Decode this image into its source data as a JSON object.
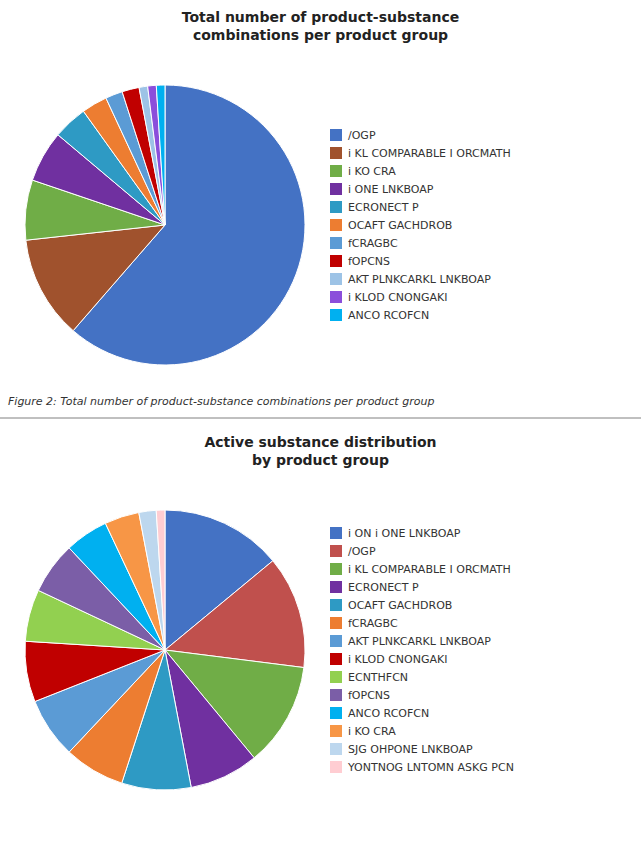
{
  "chart_data": [
    {
      "type": "pie",
      "title": "Total number of product-substance\ncombinations per product group",
      "categories": [
        "/OGP",
        "i KL COMPARABLE I ORCMATH",
        "i KO CRA",
        "i ONE LNKBOAP",
        "ECRONECT P",
        "OCAFT GACHDROB",
        "fCRAGBC",
        "fOPCNS",
        "AKT PLNKCARKL LNKBOAP",
        "i KLOD CNONGAKI",
        "ANCO RCOFCN"
      ],
      "values": [
        62,
        12,
        7,
        6,
        4,
        3,
        2,
        2,
        1,
        1,
        1
      ],
      "colors": [
        "#4472C4",
        "#A0522D",
        "#70AD47",
        "#7030A0",
        "#2E9AC4",
        "#ED7D31",
        "#5B9BD5",
        "#C00000",
        "#9DC3E6",
        "#8B4EDB",
        "#00B0F0"
      ],
      "legend": "right",
      "annotations": [
        "Figure 2: Total number of product-substance combinations per product group"
      ]
    },
    {
      "type": "pie",
      "title": "Active substance distribution\nby product group",
      "categories": [
        "i ON i ONE LNKBOAP",
        "/OGP",
        "i KL COMPARABLE I ORCMATH",
        "ECRONECT P",
        "OCAFT GACHDROB",
        "fCRAGBC",
        "AKT PLNKCARKL LNKBOAP",
        "i KLOD CNONGAKI",
        "ECNTHFCN",
        "fOPCNS",
        "ANCO RCOFCN",
        "i KO CRA",
        "SJG OHPONE LNKBOAP",
        "YONTNOG LNTOMN ASKG PCN"
      ],
      "values": [
        14,
        13,
        12,
        8,
        8,
        7,
        7,
        7,
        6,
        6,
        5,
        4,
        2,
        1
      ],
      "colors": [
        "#4472C4",
        "#C0504D",
        "#70AD47",
        "#7030A0",
        "#2E9AC4",
        "#ED7D31",
        "#5B9BD5",
        "#C00000",
        "#92D050",
        "#7B5EA7",
        "#00B0F0",
        "#F79646",
        "#BDD7EE",
        "#FFCDD2"
      ],
      "legend": "right"
    }
  ]
}
